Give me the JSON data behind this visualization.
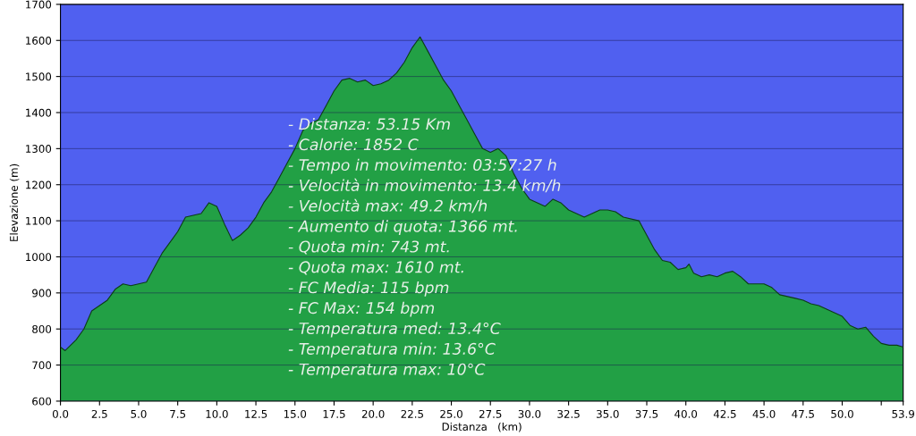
{
  "chart_data": {
    "type": "area",
    "xlabel": "Distanza   (km)",
    "ylabel": "Elevazione (m)",
    "x": [
      0,
      0.3,
      1,
      1.5,
      2,
      2.5,
      3,
      3.5,
      4,
      4.5,
      5,
      5.5,
      6,
      6.5,
      7,
      7.5,
      8,
      8.5,
      9,
      9.5,
      10,
      10.5,
      11,
      11.5,
      12,
      12.5,
      13,
      13.5,
      14,
      14.5,
      15,
      15.5,
      16,
      16.5,
      17,
      17.5,
      18,
      18.5,
      19,
      19.5,
      20,
      20.5,
      21,
      21.5,
      22,
      22.5,
      23,
      23.5,
      24,
      24.5,
      25,
      25.5,
      26,
      26.5,
      27,
      27.5,
      28,
      28.5,
      29,
      29.5,
      30,
      30.5,
      31,
      31.5,
      32,
      32.5,
      33,
      33.5,
      34,
      34.5,
      35,
      35.5,
      36,
      37,
      37.5,
      38,
      38.5,
      39,
      39.5,
      40,
      40.2,
      40.5,
      41,
      41.5,
      42,
      42.5,
      43,
      43.5,
      44,
      45,
      45.5,
      46,
      47,
      47.5,
      48,
      48.5,
      49,
      50,
      50.5,
      51,
      51.5,
      52,
      52.5,
      53,
      53.5,
      53.9
    ],
    "series": [
      {
        "color": "#22a045",
        "values": [
          750,
          740,
          770,
          800,
          850,
          865,
          880,
          910,
          925,
          920,
          925,
          930,
          970,
          1010,
          1040,
          1070,
          1110,
          1115,
          1120,
          1150,
          1140,
          1090,
          1045,
          1060,
          1080,
          1110,
          1150,
          1180,
          1220,
          1260,
          1300,
          1350,
          1370,
          1380,
          1420,
          1460,
          1490,
          1495,
          1485,
          1490,
          1475,
          1480,
          1490,
          1510,
          1540,
          1580,
          1610,
          1570,
          1530,
          1490,
          1460,
          1420,
          1380,
          1340,
          1300,
          1290,
          1300,
          1280,
          1230,
          1190,
          1160,
          1150,
          1140,
          1160,
          1150,
          1130,
          1120,
          1110,
          1120,
          1130,
          1130,
          1125,
          1110,
          1100,
          1060,
          1020,
          990,
          985,
          965,
          970,
          980,
          955,
          945,
          950,
          945,
          955,
          960,
          945,
          925,
          925,
          915,
          895,
          885,
          880,
          870,
          865,
          855,
          835,
          810,
          800,
          805,
          780,
          760,
          755,
          755,
          750
        ]
      }
    ],
    "xlim": [
      0,
      53.9
    ],
    "ylim": [
      600,
      1700
    ],
    "xticks": [
      {
        "value": 0,
        "label": "0.0"
      },
      2.5,
      {
        "value": 5,
        "label": "5.0"
      },
      7.5,
      {
        "value": 10,
        "label": "10.0"
      },
      12.5,
      {
        "value": 15,
        "label": "15.0"
      },
      17.5,
      {
        "value": 20,
        "label": "20.0"
      },
      22.5,
      {
        "value": 25,
        "label": "25.0"
      },
      27.5,
      {
        "value": 30,
        "label": "30.0"
      },
      32.5,
      {
        "value": 35,
        "label": "35.0"
      },
      37.5,
      {
        "value": 40,
        "label": "40.0"
      },
      42.5,
      {
        "value": 45,
        "label": "45.0"
      },
      47.5,
      {
        "value": 50,
        "label": "50.0"
      },
      {
        "value": 52.5,
        "label": null
      },
      53.9
    ],
    "yticks": [
      600,
      700,
      800,
      900,
      1000,
      1100,
      1200,
      1300,
      1400,
      1500,
      1600,
      1700
    ],
    "grid": "y",
    "legend": false,
    "annotations": [
      "- Distanza: 53.15 Km",
      "- Calorie: 1852 C",
      "- Tempo in movimento: 03:57:27 h",
      "- Velocità in movimento: 13.4 km/h",
      "- Velocità max: 49.2 km/h",
      "- Aumento di quota: 1366 mt.",
      "- Quota min: 743 mt.",
      "- Quota max: 1610 mt.",
      "- FC Media: 115 bpm",
      "- FC Max: 154 bpm",
      "- Temperatura med: 13.4°C",
      "- Temperatura min: 13.6°C",
      "- Temperatura max: 10°C"
    ]
  }
}
